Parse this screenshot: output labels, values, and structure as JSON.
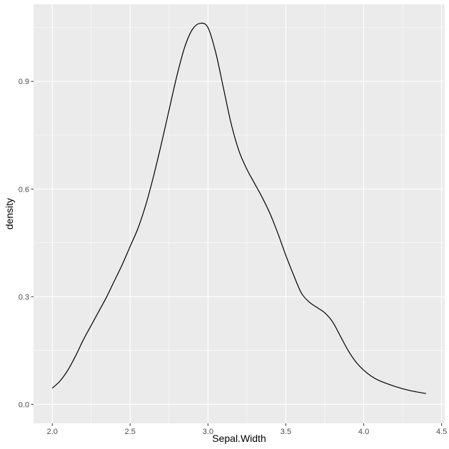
{
  "chart_data": {
    "type": "line",
    "title": "",
    "xlabel": "Sepal.Width",
    "ylabel": "density",
    "xlim": [
      1.88,
      4.52
    ],
    "ylim": [
      -0.053,
      1.115
    ],
    "x_ticks": [
      2.0,
      2.5,
      3.0,
      3.5,
      4.0,
      4.5
    ],
    "x_tick_labels": [
      "2.0",
      "2.5",
      "3.0",
      "3.5",
      "4.0",
      "4.5"
    ],
    "y_ticks": [
      0.0,
      0.3,
      0.6,
      0.9
    ],
    "y_tick_labels": [
      "0.0",
      "0.3",
      "0.6",
      "0.9"
    ],
    "grid": true,
    "legend": "none",
    "colors": {
      "panel": "#ebebeb",
      "grid": "#ffffff",
      "line": "#000000",
      "tick_text": "#4d4d4d",
      "tick_mark": "#333333"
    },
    "series": [
      {
        "x": [
          2.0,
          2.05,
          2.1,
          2.15,
          2.2,
          2.25,
          2.3,
          2.35,
          2.4,
          2.45,
          2.5,
          2.55,
          2.6,
          2.65,
          2.7,
          2.75,
          2.8,
          2.85,
          2.9,
          2.95,
          3.0,
          3.05,
          3.1,
          3.15,
          3.2,
          3.25,
          3.3,
          3.35,
          3.4,
          3.45,
          3.5,
          3.55,
          3.6,
          3.65,
          3.7,
          3.75,
          3.8,
          3.85,
          3.9,
          3.95,
          4.0,
          4.05,
          4.1,
          4.2,
          4.3,
          4.4
        ],
        "y": [
          0.045,
          0.065,
          0.095,
          0.135,
          0.18,
          0.22,
          0.26,
          0.3,
          0.345,
          0.39,
          0.44,
          0.49,
          0.555,
          0.635,
          0.725,
          0.82,
          0.915,
          0.995,
          1.045,
          1.062,
          1.05,
          0.98,
          0.88,
          0.78,
          0.705,
          0.655,
          0.615,
          0.575,
          0.53,
          0.475,
          0.415,
          0.36,
          0.31,
          0.285,
          0.27,
          0.255,
          0.23,
          0.19,
          0.15,
          0.118,
          0.095,
          0.078,
          0.066,
          0.05,
          0.038,
          0.03
        ]
      }
    ]
  }
}
